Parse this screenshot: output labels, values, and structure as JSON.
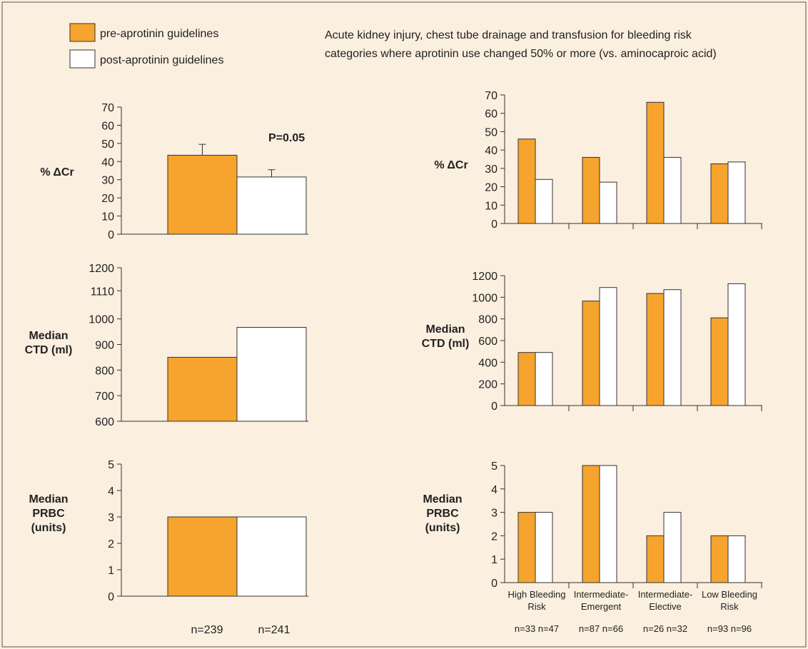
{
  "colors": {
    "background": "#fbefdf",
    "pre": "#f6a42d",
    "post": "#ffffff",
    "frame": "#555555",
    "axis": "#333333",
    "text": "#222222"
  },
  "legend": {
    "pre_label": "pre-aprotinin guidelines",
    "post_label": "post-aprotinin guidelines"
  },
  "header": {
    "line1": "Acute kidney injury, chest tube drainage and transfusion for bleeding risk",
    "line2": "categories where aprotinin use changed 50% or more (vs. aminocaproic acid)"
  },
  "left_sample_sizes": [
    "n=239",
    "n=241"
  ],
  "chart_data": [
    {
      "type": "bar",
      "panel": "left-top",
      "ylabel": [
        "% ΔCr"
      ],
      "ylim": [
        0,
        70
      ],
      "yticks": [
        0,
        10,
        20,
        30,
        40,
        50,
        60,
        70
      ],
      "series": [
        {
          "name": "pre-aprotinin guidelines",
          "values": [
            43.5
          ],
          "error": [
            6
          ]
        },
        {
          "name": "post-aprotinin guidelines",
          "values": [
            31.5
          ],
          "error": [
            4
          ]
        }
      ],
      "annotation": "P=0.05"
    },
    {
      "type": "bar",
      "panel": "left-middle",
      "ylabel": [
        "Median",
        "CTD (ml)"
      ],
      "ylim": [
        600,
        1200
      ],
      "yticks": [
        600,
        700,
        800,
        900,
        1000,
        1110,
        1200
      ],
      "series": [
        {
          "name": "pre-aprotinin guidelines",
          "values": [
            850
          ]
        },
        {
          "name": "post-aprotinin guidelines",
          "values": [
            967
          ]
        }
      ]
    },
    {
      "type": "bar",
      "panel": "left-bottom",
      "ylabel": [
        "Median",
        "PRBC",
        "(units)"
      ],
      "ylim": [
        0,
        5
      ],
      "yticks": [
        0,
        1,
        2,
        3,
        4,
        5
      ],
      "series": [
        {
          "name": "pre-aprotinin guidelines",
          "values": [
            3
          ]
        },
        {
          "name": "post-aprotinin guidelines",
          "values": [
            3
          ]
        }
      ]
    },
    {
      "type": "bar",
      "panel": "right-top",
      "ylabel": [
        "% ΔCr"
      ],
      "ylim": [
        0,
        70
      ],
      "yticks": [
        0,
        10,
        20,
        30,
        40,
        50,
        60,
        70
      ],
      "categories": [
        "High Bleeding Risk",
        "Intermediate-Emergent",
        "Intermediate-Elective",
        "Low Bleeding Risk"
      ],
      "series": [
        {
          "name": "pre-aprotinin guidelines",
          "values": [
            46,
            36,
            66,
            32.5
          ]
        },
        {
          "name": "post-aprotinin guidelines",
          "values": [
            24,
            22.5,
            36,
            33.5
          ]
        }
      ]
    },
    {
      "type": "bar",
      "panel": "right-middle",
      "ylabel": [
        "Median",
        "CTD (ml)"
      ],
      "ylim": [
        0,
        1200
      ],
      "yticks": [
        0,
        200,
        400,
        600,
        800,
        1000,
        1200
      ],
      "categories": [
        "High Bleeding Risk",
        "Intermediate-Emergent",
        "Intermediate-Elective",
        "Low Bleeding Risk"
      ],
      "series": [
        {
          "name": "pre-aprotinin guidelines",
          "values": [
            490,
            965,
            1035,
            810
          ]
        },
        {
          "name": "post-aprotinin guidelines",
          "values": [
            490,
            1090,
            1070,
            1125
          ]
        }
      ]
    },
    {
      "type": "bar",
      "panel": "right-bottom",
      "ylabel": [
        "Median",
        "PRBC",
        "(units)"
      ],
      "ylim": [
        0,
        5
      ],
      "yticks": [
        0,
        1,
        2,
        3,
        4,
        5
      ],
      "categories": [
        "High Bleeding Risk",
        "Intermediate-Emergent",
        "Intermediate-Elective",
        "Low Bleeding Risk"
      ],
      "category_labels": [
        [
          "High Bleeding",
          "Risk"
        ],
        [
          "Intermediate-",
          "Emergent"
        ],
        [
          "Intermediate-",
          "Elective"
        ],
        [
          "Low Bleeding",
          "Risk"
        ]
      ],
      "sample_sizes": [
        "n=33 n=47",
        "n=87 n=66",
        "n=26 n=32",
        "n=93 n=96"
      ],
      "series": [
        {
          "name": "pre-aprotinin guidelines",
          "values": [
            3,
            5,
            2,
            2
          ]
        },
        {
          "name": "post-aprotinin guidelines",
          "values": [
            3,
            5,
            3,
            2
          ]
        }
      ]
    }
  ]
}
